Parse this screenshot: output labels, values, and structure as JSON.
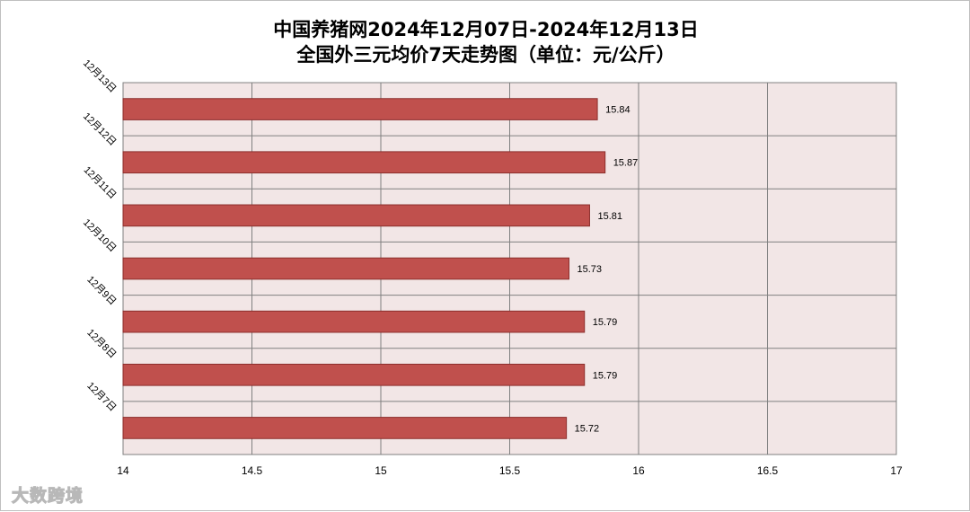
{
  "title_line1": "中国养猪网2024年12月07日-2024年12月13日",
  "title_line2": "全国外三元均价7天走势图（单位：元/公斤）",
  "watermark": "大数跨境",
  "colors": {
    "bar_fill": "#C0504D",
    "bar_stroke": "#8C2F2D",
    "plot_bg": "#F2E6E6",
    "grid": "#808080"
  },
  "chart_data": {
    "type": "bar",
    "orientation": "horizontal",
    "categories": [
      "12月13日",
      "12月12日",
      "12月11日",
      "12月10日",
      "12月9日",
      "12月8日",
      "12月7日"
    ],
    "values": [
      15.84,
      15.87,
      15.81,
      15.73,
      15.79,
      15.79,
      15.72
    ],
    "data_labels": [
      "15.84",
      "15.87",
      "15.81",
      "15.73",
      "15.79",
      "15.79",
      "15.72"
    ],
    "xlim": [
      14,
      17
    ],
    "x_ticks": [
      14,
      14.5,
      15,
      15.5,
      16,
      16.5,
      17
    ],
    "x_tick_labels": [
      "14",
      "14.5",
      "15",
      "15.5",
      "16",
      "16.5",
      "17"
    ],
    "grid": true,
    "legend": false
  }
}
